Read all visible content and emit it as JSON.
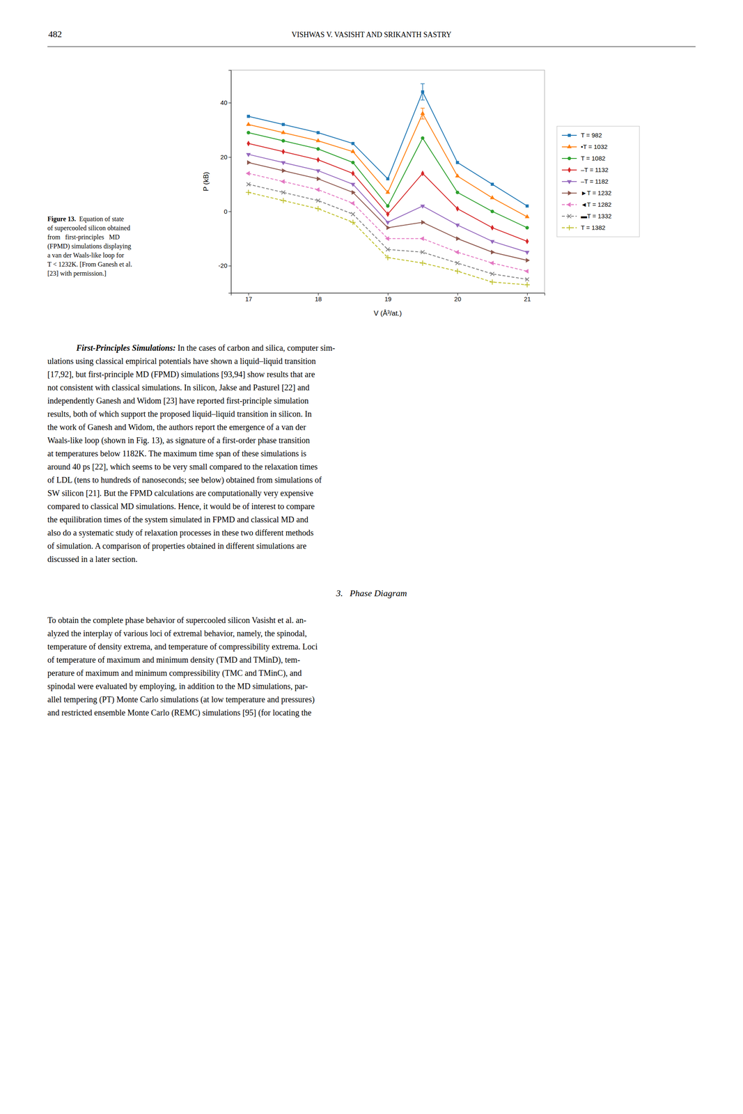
{
  "page_title_left": "482",
  "page_title_center": "VISHWAS V. VASISHT AND SRIKANTH SASTRY",
  "fig_caption_bold": "Figure 13.",
  "fig_caption_rest": "  Equation of state\nof supercooled silicon obtained\nfrom   first-principles   MD\n(FPMD) simulations displaying\na van der Waals-like loop for\nT < 1232K. [From Ganesh et al.\n[23] with permission.]",
  "para1_bold": "First-Principles Simulations:",
  "para1_rest": " In the cases of carbon and silica, computer sim-\nulations using classical empirical potentials have shown a liquid–liquid transition\n[17,92], but first-principle MD (FPMD) simulations [93,94] show results that are\nnot consistent with classical simulations. In silicon, Jakse and Pasturel [22] and\nindependently Ganesh and Widom [23] have reported first-principle simulation\nresults, both of which support the proposed liquid–liquid transition in silicon. In\nthe work of Ganesh and Widom, the authors report the emergence of a van der\nWaals-like loop (shown in Fig. 13), as signature of a first-order phase transition\nat temperatures below 1182K. The maximum time span of these simulations is\naround 40 ps [22], which seems to be very small compared to the relaxation times\nof LDL (tens to hundreds of nanoseconds; see below) obtained from simulations of\nSW silicon [21]. But the FPMD calculations are computationally very expensive\ncompared to classical MD simulations. Hence, it would be of interest to compare\nthe equilibration times of the system simulated in FPMD and classical MD and\nalso do a systematic study of relaxation processes in these two different methods\nof simulation. A comparison of properties obtained in different simulations are\ndiscussed in a later section.",
  "section_heading": "3.   Phase Diagram",
  "section_text": "To obtain the complete phase behavior of supercooled silicon Vasisht et al. an-\nalyzed the interplay of various loci of extremal behavior, namely, the spinodal,\ntemperature of density extrema, and temperature of compressibility extrema. Loci\nof temperature of maximum and minimum density (TMD and TMinD), tem-\nperature of maximum and minimum compressibility (TMC and TMinC), and\nspinodal were evaluated by employing, in addition to the MD simulations, par-\nallel tempering (PT) Monte Carlo simulations (at low temperature and pressures)\nand restricted ensemble Monte Carlo (REMC) simulations [95] (for locating the",
  "chart_data": {
    "type": "line",
    "x_label": "V (Å³/at.)",
    "y_label": "P (kB)",
    "x": [
      17.0,
      17.5,
      18.0,
      18.5,
      19.0,
      19.5,
      20.0,
      20.5,
      21.0
    ],
    "series": [
      {
        "name": "T = 982",
        "marker": "square",
        "line_style": "solid",
        "values": [
          35,
          32,
          29,
          25,
          12,
          44,
          18,
          10,
          2
        ],
        "errors": [
          null,
          null,
          null,
          null,
          null,
          3,
          null,
          null,
          null
        ]
      },
      {
        "name": "•T = 1032",
        "marker": "triangle-up",
        "line_style": "solid",
        "values": [
          32,
          29,
          26,
          22,
          7,
          36,
          13,
          5,
          -2
        ],
        "errors": [
          null,
          null,
          null,
          null,
          null,
          2,
          null,
          null,
          null
        ]
      },
      {
        "name": "T = 1082",
        "marker": "circle",
        "line_style": "solid",
        "values": [
          29,
          26,
          23,
          18,
          2,
          27,
          7,
          0,
          -6
        ]
      },
      {
        "name": "–T = 1132",
        "marker": "diamond",
        "line_style": "solid",
        "values": [
          25,
          22,
          19,
          14,
          -1,
          14,
          1,
          -6,
          -11
        ]
      },
      {
        "name": "–T = 1182",
        "marker": "triangle-down",
        "line_style": "solid",
        "values": [
          21,
          18,
          15,
          10,
          -4,
          2,
          -5,
          -11,
          -15
        ]
      },
      {
        "name": "►T = 1232",
        "marker": "triangle-right",
        "line_style": "solid",
        "values": [
          18,
          15,
          12,
          7,
          -6,
          -4,
          -10,
          -15,
          -18
        ]
      },
      {
        "name": "◄T = 1282",
        "marker": "triangle-left",
        "line_style": "dashed",
        "values": [
          14,
          11,
          8,
          3,
          -10,
          -10,
          -15,
          -19,
          -22
        ]
      },
      {
        "name": "▬T = 1332",
        "marker": "x",
        "line_style": "dashed",
        "values": [
          10,
          7,
          4,
          -1,
          -14,
          -15,
          -19,
          -23,
          -25
        ]
      },
      {
        "name": "T = 1382",
        "marker": "plus",
        "line_style": "dashed",
        "values": [
          7,
          4,
          1,
          -4,
          -17,
          -19,
          -22,
          -26,
          -27
        ]
      }
    ],
    "xlim": [
      16.75,
      21.25
    ],
    "ylim": [
      -30,
      52
    ],
    "xticks": [
      17,
      18,
      19,
      20,
      21
    ],
    "yticks": [
      -20,
      0,
      20,
      40
    ],
    "grid": false,
    "legend": "right"
  }
}
